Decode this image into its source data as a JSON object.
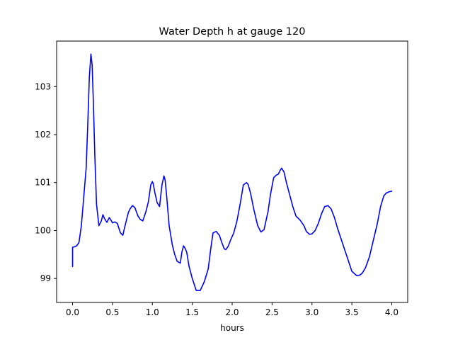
{
  "chart_data": {
    "type": "line",
    "title": "Water Depth h at gauge 120",
    "xlabel": "hours",
    "ylabel": "",
    "xlim": [
      -0.2,
      4.2
    ],
    "ylim": [
      98.5,
      103.95
    ],
    "xticks": [
      0.0,
      0.5,
      1.0,
      1.5,
      2.0,
      2.5,
      3.0,
      3.5,
      4.0
    ],
    "xtick_labels": [
      "0.0",
      "0.5",
      "1.0",
      "1.5",
      "2.0",
      "2.5",
      "3.0",
      "3.5",
      "4.0"
    ],
    "yticks": [
      99,
      100,
      101,
      102,
      103
    ],
    "ytick_labels": [
      "99",
      "100",
      "101",
      "102",
      "103"
    ],
    "grid": false,
    "series": [
      {
        "name": "",
        "color": "#0000ff",
        "x": [
          0.0,
          0.0,
          0.02,
          0.05,
          0.08,
          0.11,
          0.14,
          0.17,
          0.19,
          0.21,
          0.23,
          0.245,
          0.26,
          0.28,
          0.3,
          0.33,
          0.36,
          0.38,
          0.4,
          0.43,
          0.46,
          0.48,
          0.5,
          0.53,
          0.56,
          0.6,
          0.63,
          0.65,
          0.68,
          0.7,
          0.72,
          0.75,
          0.78,
          0.82,
          0.85,
          0.88,
          0.92,
          0.95,
          0.98,
          1.0,
          1.01,
          1.03,
          1.06,
          1.09,
          1.12,
          1.145,
          1.16,
          1.18,
          1.21,
          1.25,
          1.28,
          1.31,
          1.35,
          1.37,
          1.39,
          1.41,
          1.43,
          1.46,
          1.5,
          1.55,
          1.6,
          1.65,
          1.7,
          1.73,
          1.76,
          1.8,
          1.84,
          1.87,
          1.9,
          1.92,
          1.95,
          1.98,
          2.02,
          2.06,
          2.1,
          2.14,
          2.18,
          2.2,
          2.23,
          2.27,
          2.32,
          2.36,
          2.4,
          2.45,
          2.48,
          2.52,
          2.55,
          2.58,
          2.6,
          2.62,
          2.65,
          2.68,
          2.72,
          2.76,
          2.8,
          2.85,
          2.9,
          2.93,
          2.97,
          3.0,
          3.04,
          3.08,
          3.12,
          3.16,
          3.2,
          3.24,
          3.28,
          3.32,
          3.38,
          3.44,
          3.5,
          3.56,
          3.6,
          3.63,
          3.67,
          3.72,
          3.77,
          3.82,
          3.86,
          3.9,
          3.93,
          3.97,
          4.0
        ],
        "y": [
          99.25,
          99.65,
          99.66,
          99.68,
          99.75,
          100.1,
          100.7,
          101.3,
          102.2,
          103.2,
          103.68,
          103.45,
          102.7,
          101.5,
          100.55,
          100.1,
          100.2,
          100.33,
          100.25,
          100.17,
          100.27,
          100.22,
          100.16,
          100.18,
          100.15,
          99.95,
          99.9,
          100.05,
          100.25,
          100.38,
          100.45,
          100.52,
          100.48,
          100.3,
          100.23,
          100.2,
          100.4,
          100.6,
          100.95,
          101.02,
          100.98,
          100.8,
          100.58,
          100.5,
          100.95,
          101.14,
          101.05,
          100.7,
          100.1,
          99.7,
          99.5,
          99.36,
          99.32,
          99.55,
          99.68,
          99.63,
          99.55,
          99.25,
          99.0,
          98.75,
          98.75,
          98.93,
          99.2,
          99.6,
          99.95,
          99.98,
          99.9,
          99.75,
          99.62,
          99.6,
          99.67,
          99.8,
          99.95,
          100.2,
          100.55,
          100.95,
          101.0,
          100.96,
          100.78,
          100.45,
          100.1,
          99.97,
          100.02,
          100.4,
          100.75,
          101.1,
          101.15,
          101.18,
          101.25,
          101.3,
          101.22,
          101.0,
          100.75,
          100.5,
          100.3,
          100.22,
          100.1,
          99.98,
          99.92,
          99.93,
          100.0,
          100.15,
          100.35,
          100.5,
          100.52,
          100.45,
          100.28,
          100.05,
          99.75,
          99.45,
          99.15,
          99.06,
          99.07,
          99.11,
          99.22,
          99.45,
          99.8,
          100.15,
          100.5,
          100.72,
          100.78,
          100.81,
          100.82
        ]
      }
    ]
  }
}
